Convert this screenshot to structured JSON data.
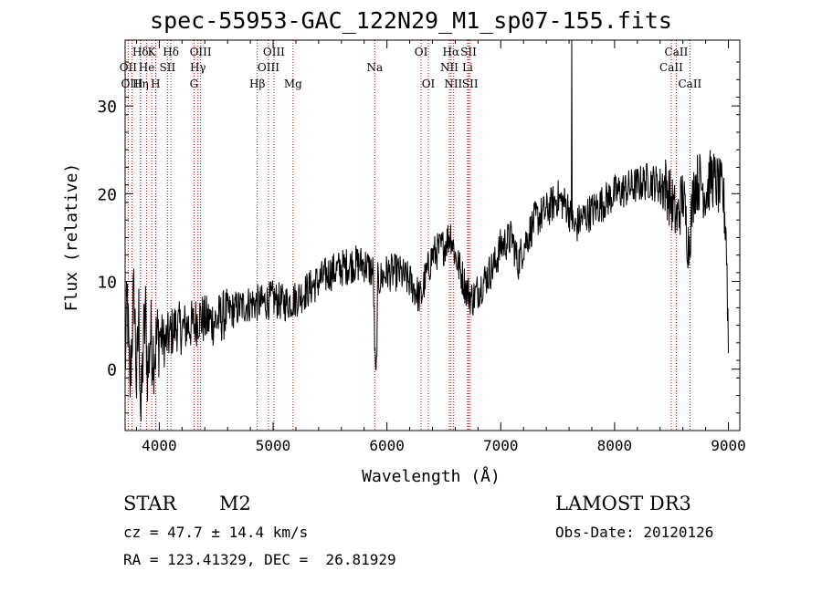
{
  "header": {
    "title": "spec-55953-GAC_122N29_M1_sp07-155.fits"
  },
  "info": {
    "class": "STAR",
    "subclass": "M2",
    "survey": "LAMOST DR3",
    "cz": "cz = 47.7 ± 14.4 km/s",
    "obsdate": "Obs-Date: 20120126",
    "coords": "RA = 123.41329, DEC =  26.81929"
  },
  "colors": {
    "line_marker": "#cc0000",
    "spectrum": "#000000"
  },
  "chart_data": {
    "type": "line",
    "title": "spec-55953-GAC_122N29_M1_sp07-155.fits",
    "xlabel": "Wavelength (Å)",
    "ylabel": "Flux (relative)",
    "xlim": [
      3700,
      9100
    ],
    "ylim": [
      -7,
      37.5
    ],
    "xticks": [
      4000,
      5000,
      6000,
      7000,
      8000,
      9000
    ],
    "yticks": [
      0,
      10,
      20,
      30
    ],
    "grid": false,
    "spectrum_anchors": [
      [
        3700,
        0.5
      ],
      [
        3720,
        8
      ],
      [
        3740,
        -3
      ],
      [
        3760,
        4
      ],
      [
        3780,
        9
      ],
      [
        3800,
        -2
      ],
      [
        3820,
        6
      ],
      [
        3840,
        -6
      ],
      [
        3860,
        3
      ],
      [
        3880,
        6
      ],
      [
        3900,
        -1
      ],
      [
        3920,
        4
      ],
      [
        3950,
        2
      ],
      [
        4000,
        4
      ],
      [
        4050,
        3
      ],
      [
        4100,
        4
      ],
      [
        4150,
        5
      ],
      [
        4200,
        4.5
      ],
      [
        4250,
        5
      ],
      [
        4300,
        5
      ],
      [
        4350,
        6
      ],
      [
        4400,
        5.5
      ],
      [
        4500,
        5.5
      ],
      [
        4600,
        6.5
      ],
      [
        4700,
        7
      ],
      [
        4800,
        7.5
      ],
      [
        4900,
        7.5
      ],
      [
        5000,
        8
      ],
      [
        5100,
        7.5
      ],
      [
        5200,
        8
      ],
      [
        5300,
        9
      ],
      [
        5400,
        10
      ],
      [
        5500,
        11
      ],
      [
        5600,
        11.5
      ],
      [
        5700,
        12
      ],
      [
        5800,
        12
      ],
      [
        5880,
        11
      ],
      [
        5895,
        1
      ],
      [
        5905,
        -2
      ],
      [
        5920,
        10
      ],
      [
        6000,
        11
      ],
      [
        6100,
        11
      ],
      [
        6200,
        10
      ],
      [
        6300,
        8
      ],
      [
        6330,
        10
      ],
      [
        6400,
        13
      ],
      [
        6500,
        14
      ],
      [
        6560,
        15.5
      ],
      [
        6600,
        13
      ],
      [
        6650,
        11
      ],
      [
        6700,
        9
      ],
      [
        6750,
        8
      ],
      [
        6800,
        9
      ],
      [
        6900,
        11
      ],
      [
        6950,
        12
      ],
      [
        7000,
        14
      ],
      [
        7100,
        15
      ],
      [
        7150,
        12
      ],
      [
        7200,
        14
      ],
      [
        7300,
        17
      ],
      [
        7400,
        18
      ],
      [
        7500,
        19.5
      ],
      [
        7590,
        18.5
      ],
      [
        7620,
        17
      ],
      [
        7650,
        16
      ],
      [
        7700,
        17
      ],
      [
        7800,
        18
      ],
      [
        7900,
        19
      ],
      [
        8000,
        20
      ],
      [
        8100,
        20.5
      ],
      [
        8200,
        21
      ],
      [
        8300,
        21.5
      ],
      [
        8400,
        21
      ],
      [
        8450,
        21
      ],
      [
        8500,
        19
      ],
      [
        8550,
        17
      ],
      [
        8600,
        20
      ],
      [
        8650,
        14
      ],
      [
        8700,
        21
      ],
      [
        8750,
        21.5
      ],
      [
        8800,
        20
      ],
      [
        8850,
        22
      ],
      [
        8900,
        21
      ],
      [
        8950,
        20
      ],
      [
        8980,
        16
      ],
      [
        9000,
        3
      ]
    ],
    "emission_peak": {
      "wavelength": 7625,
      "flux": 37.5
    },
    "spectral_lines": [
      {
        "label": "Hδ",
        "wavelength": 3835,
        "row": 1
      },
      {
        "label": "K",
        "wavelength": 3934,
        "row": 1
      },
      {
        "label": "Hδ",
        "wavelength": 4102,
        "row": 1
      },
      {
        "label": "OIII",
        "wavelength": 4363,
        "row": 1
      },
      {
        "label": "OIII",
        "wavelength": 5007,
        "row": 1
      },
      {
        "label": "OI",
        "wavelength": 6300,
        "row": 1
      },
      {
        "label": "Hα",
        "wavelength": 6563,
        "row": 1
      },
      {
        "label": "SII",
        "wavelength": 6717,
        "row": 1
      },
      {
        "label": "CaII",
        "wavelength": 8542,
        "row": 1
      },
      {
        "label": "OII",
        "wavelength": 3727,
        "row": 2
      },
      {
        "label": "He",
        "wavelength": 3889,
        "row": 2
      },
      {
        "label": "SII",
        "wavelength": 4072,
        "row": 2
      },
      {
        "label": "Hγ",
        "wavelength": 4340,
        "row": 2
      },
      {
        "label": "OIII",
        "wavelength": 4959,
        "row": 2
      },
      {
        "label": "Na",
        "wavelength": 5893,
        "row": 2
      },
      {
        "label": "NII",
        "wavelength": 6548,
        "row": 2
      },
      {
        "label": "Li",
        "wavelength": 6708,
        "row": 2
      },
      {
        "label": "CaII",
        "wavelength": 8498,
        "row": 2
      },
      {
        "label": "OIII",
        "wavelength": 3760,
        "row": 3
      },
      {
        "label": "Hη",
        "wavelength": 3835,
        "row": 3
      },
      {
        "label": "H",
        "wavelength": 3968,
        "row": 3
      },
      {
        "label": "G",
        "wavelength": 4305,
        "row": 3
      },
      {
        "label": "Hβ",
        "wavelength": 4861,
        "row": 3
      },
      {
        "label": "Mg",
        "wavelength": 5175,
        "row": 3
      },
      {
        "label": "OI",
        "wavelength": 6364,
        "row": 3
      },
      {
        "label": "NII",
        "wavelength": 6583,
        "row": 3
      },
      {
        "label": "SII",
        "wavelength": 6731,
        "row": 3
      },
      {
        "label": "CaII",
        "wavelength": 8662,
        "row": 3
      }
    ]
  }
}
